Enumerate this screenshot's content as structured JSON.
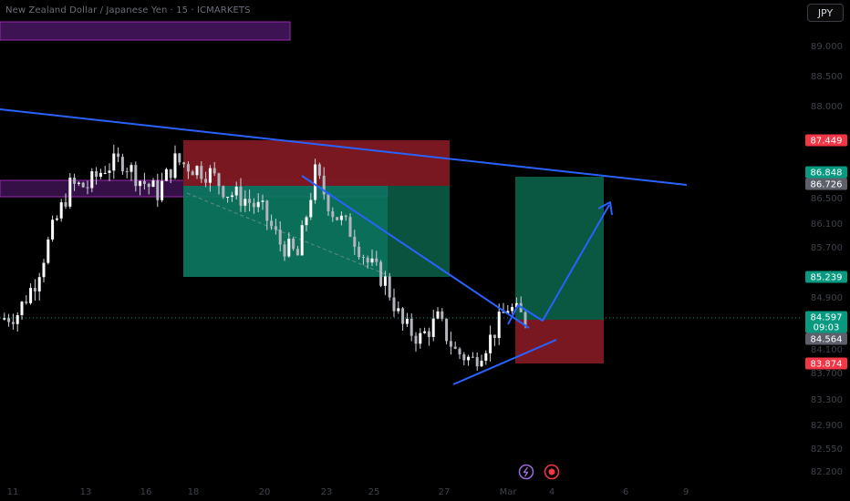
{
  "title": "New Zealand Dollar / Japanese Yen · 15 · ICMARKETS",
  "currency_button": "JPY",
  "colors": {
    "background": "#000000",
    "trendline": "#2962ff",
    "stop_zone": "#801922",
    "target_zone": "#0b5c46",
    "purple_zone": "#3d1354",
    "purple_border": "#9c27b0",
    "candle": "#d1d4dc",
    "last_price": "#089981",
    "red_label": "#f23645",
    "gray_label": "#5d606b"
  },
  "icons": [
    "lightning-icon",
    "record-icon"
  ],
  "chart_data": {
    "type": "candlestick",
    "title": "New Zealand Dollar / Japanese Yen · 15 · ICMARKETS",
    "y_ticks": [
      "89.000",
      "88.500",
      "88.000",
      "86.500",
      "86.100",
      "85.700",
      "84.900",
      "84.100",
      "83.700",
      "83.300",
      "82.900",
      "82.550",
      "82.200"
    ],
    "x_ticks": [
      "11",
      "13",
      "16",
      "18",
      "20",
      "23",
      "25",
      "27",
      "Mar",
      "4",
      "6",
      "9"
    ],
    "price_labels": [
      {
        "value": "87.449",
        "style": "red"
      },
      {
        "value": "86.848",
        "style": "green"
      },
      {
        "value": "86.726",
        "style": "gray"
      },
      {
        "value": "85.239",
        "style": "green"
      },
      {
        "value": "84.597",
        "style": "green",
        "countdown": "09:03"
      },
      {
        "value": "84.564",
        "style": "gray"
      },
      {
        "value": "83.874",
        "style": "red"
      }
    ],
    "last_price": 84.597,
    "countdown": "09:03",
    "series_path": [
      [
        0,
        84.6
      ],
      [
        2,
        84.7
      ],
      [
        4,
        85.2
      ],
      [
        6,
        86.0
      ],
      [
        8,
        86.7
      ],
      [
        10,
        86.7
      ],
      [
        12,
        87.0
      ],
      [
        14,
        87.1
      ],
      [
        16,
        86.8
      ],
      [
        18,
        86.6
      ],
      [
        20,
        87.1
      ],
      [
        22,
        87.0
      ],
      [
        24,
        86.9
      ],
      [
        26,
        86.6
      ],
      [
        28,
        86.5
      ],
      [
        30,
        86.3
      ],
      [
        32,
        85.8
      ],
      [
        34,
        85.6
      ],
      [
        36,
        86.9
      ],
      [
        38,
        86.3
      ],
      [
        40,
        86.0
      ],
      [
        42,
        85.5
      ],
      [
        44,
        85.2
      ],
      [
        46,
        84.5
      ],
      [
        48,
        84.3
      ],
      [
        50,
        84.6
      ],
      [
        52,
        84.1
      ],
      [
        54,
        83.95
      ],
      [
        56,
        84.3
      ],
      [
        58,
        84.8
      ],
      [
        60,
        84.6
      ]
    ],
    "drawings": [
      {
        "type": "trendline",
        "desc": "long descending resistance",
        "from": [
          0,
          88.3
        ],
        "to": [
          62,
          86.65
        ]
      },
      {
        "type": "trendline",
        "desc": "falling wedge upper",
        "from": [
          27.5,
          86.9
        ],
        "to": [
          49,
          84.0
        ]
      },
      {
        "type": "trendline",
        "desc": "falling wedge lower",
        "from": [
          40.8,
          83.5
        ],
        "to": [
          50.5,
          84.15
        ]
      },
      {
        "type": "arrow-path",
        "desc": "projected move",
        "points": [
          [
            47,
            84.7
          ],
          [
            49.5,
            84.95
          ],
          [
            51.5,
            84.55
          ],
          [
            55.5,
            86.3
          ]
        ]
      },
      {
        "type": "short-position",
        "entry": 85.239,
        "stop": 87.449,
        "target": 85.239,
        "profit_low": 85.239
      },
      {
        "type": "long-position",
        "entry": 84.564,
        "target": 86.848,
        "stop": 83.874
      }
    ]
  }
}
